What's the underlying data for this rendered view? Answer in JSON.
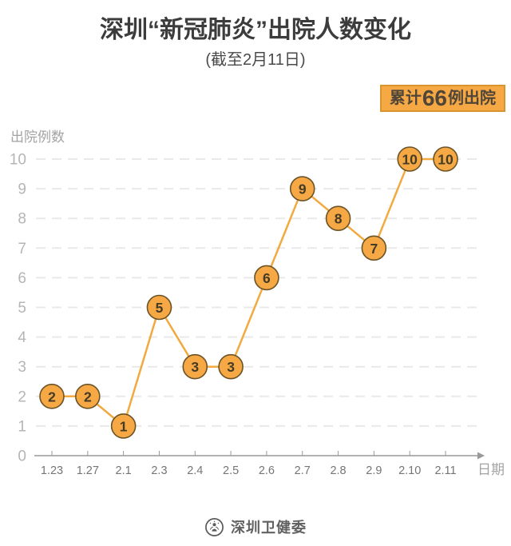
{
  "header": {
    "title": "深圳“新冠肺炎”出院人数变化",
    "subtitle": "(截至2月11日)",
    "badge": {
      "prefix": "累计",
      "count": "66",
      "suffix": "例出院"
    }
  },
  "chart_data": {
    "type": "line",
    "title": "深圳“新冠肺炎”出院人数变化",
    "subtitle": "(截至2月11日)",
    "categories": [
      "1.23",
      "1.27",
      "2.1",
      "2.3",
      "2.4",
      "2.5",
      "2.6",
      "2.7",
      "2.8",
      "2.9",
      "2.10",
      "2.11"
    ],
    "values": [
      2,
      2,
      1,
      5,
      3,
      3,
      6,
      9,
      8,
      7,
      10,
      10
    ],
    "ylabel": "出院例数",
    "xlabel": "日期",
    "ylim": [
      0,
      10
    ],
    "yticks": [
      0,
      1,
      2,
      3,
      4,
      5,
      6,
      7,
      8,
      9,
      10
    ],
    "grid": "horizontal-dashed",
    "legend": "none",
    "data_labels": "inside-markers",
    "colors": {
      "line": "#F2A93F",
      "marker_fill": "#F5A843",
      "marker_border": "#6B5327",
      "marker_text": "#453C28",
      "grid": "#E9E9E9",
      "axis": "#999999",
      "ytick_text": "#B5B5B5",
      "xtick_text": "#757575",
      "axis_label_text": "#A3A3A3"
    }
  },
  "footer": {
    "text": "深圳卫健委",
    "logo": "shenzhen-health-commission-emblem"
  }
}
